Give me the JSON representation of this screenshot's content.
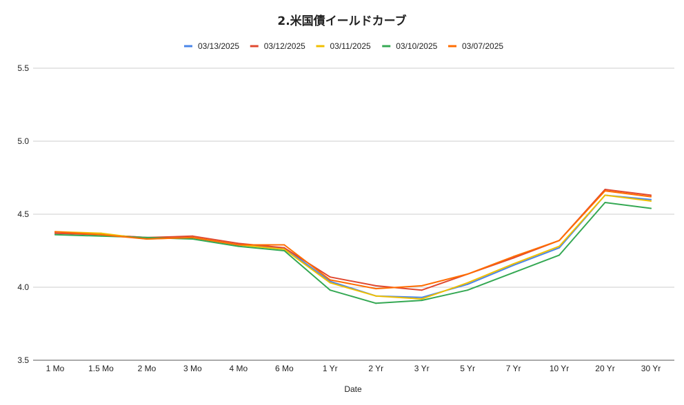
{
  "chart_data": {
    "type": "line",
    "title": "2.米国債イールドカーブ",
    "xlabel": "Date",
    "ylabel": "",
    "ylim": [
      3.5,
      5.5
    ],
    "yticks": [
      "3.5",
      "4.0",
      "4.5",
      "5.0",
      "5.5"
    ],
    "ytick_values": [
      3.5,
      4.0,
      4.5,
      5.0,
      5.5
    ],
    "grid": true,
    "legend_position": "top",
    "categories": [
      "1 Mo",
      "1.5 Mo",
      "2 Mo",
      "3 Mo",
      "4 Mo",
      "6 Mo",
      "1 Yr",
      "2 Yr",
      "3 Yr",
      "5 Yr",
      "7 Yr",
      "10 Yr",
      "20 Yr",
      "30 Yr"
    ],
    "series": [
      {
        "name": "03/13/2025",
        "color": "#4a86e8",
        "values": [
          4.37,
          4.36,
          4.34,
          4.34,
          4.29,
          4.27,
          4.04,
          3.94,
          3.93,
          4.02,
          4.15,
          4.27,
          4.63,
          4.6
        ]
      },
      {
        "name": "03/12/2025",
        "color": "#e0482f",
        "values": [
          4.37,
          4.36,
          4.34,
          4.35,
          4.3,
          4.27,
          4.07,
          4.01,
          3.98,
          4.09,
          4.2,
          4.32,
          4.67,
          4.63
        ]
      },
      {
        "name": "03/11/2025",
        "color": "#f0bf00",
        "values": [
          4.38,
          4.37,
          4.33,
          4.34,
          4.29,
          4.26,
          4.03,
          3.94,
          3.92,
          4.03,
          4.16,
          4.28,
          4.63,
          4.59
        ]
      },
      {
        "name": "03/10/2025",
        "color": "#34a853",
        "values": [
          4.36,
          4.35,
          4.34,
          4.33,
          4.28,
          4.25,
          3.98,
          3.89,
          3.91,
          3.98,
          4.1,
          4.22,
          4.58,
          4.54
        ]
      },
      {
        "name": "03/07/2025",
        "color": "#ff6d01",
        "values": [
          4.38,
          4.36,
          4.33,
          4.34,
          4.29,
          4.29,
          4.05,
          3.99,
          4.01,
          4.09,
          4.21,
          4.32,
          4.66,
          4.62
        ]
      }
    ]
  }
}
